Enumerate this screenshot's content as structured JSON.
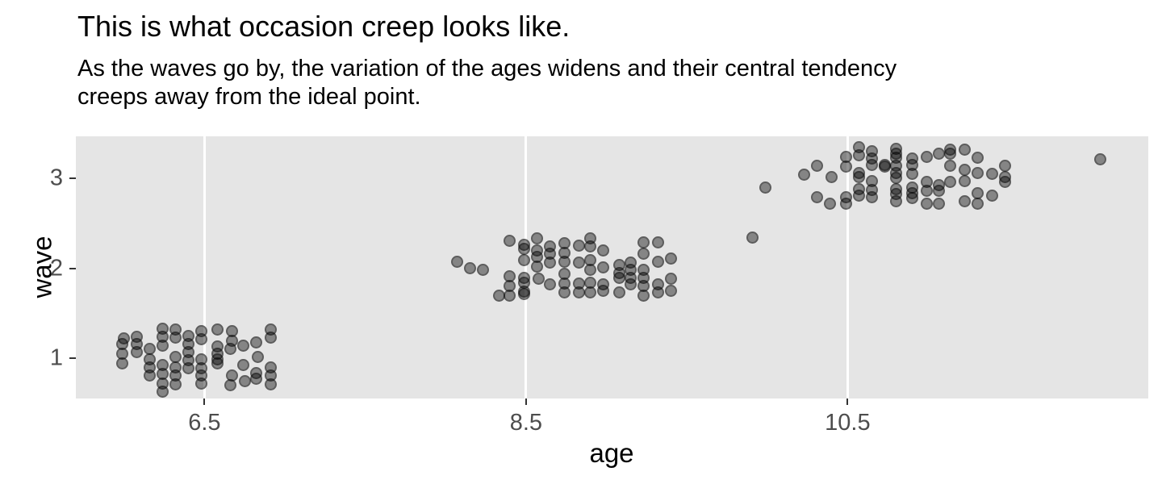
{
  "chart_data": {
    "type": "scatter",
    "title": "This is what occasion creep looks like.",
    "subtitle": "As the waves go by, the variation of the ages widens and their central tendency\ncreeps away from the ideal point.",
    "xlabel": "age",
    "ylabel": "wave",
    "x_ticks": [
      6.5,
      8.5,
      10.5
    ],
    "y_ticks": [
      1,
      2,
      3
    ],
    "xlim": [
      5.7,
      12.37
    ],
    "ylim": [
      0.55,
      3.47
    ],
    "grid": "vertical-major-only",
    "legend": "none",
    "style": {
      "panel_bg": "#e5e5e5",
      "gridline_color": "#ffffff",
      "tick_mark_color": "#333333",
      "axis_text_color": "#4d4d4d",
      "point_color": "#000000",
      "point_fill_alpha": 0.42,
      "point_stroke_alpha": 0.3
    },
    "points": [
      [
        5.99,
        1.16
      ],
      [
        5.99,
        1.05
      ],
      [
        5.99,
        0.94
      ],
      [
        6.0,
        1.22
      ],
      [
        6.08,
        1.24
      ],
      [
        6.08,
        1.16
      ],
      [
        6.08,
        1.07
      ],
      [
        6.16,
        1.1
      ],
      [
        6.16,
        0.99
      ],
      [
        6.16,
        0.9
      ],
      [
        6.16,
        0.81
      ],
      [
        6.24,
        1.33
      ],
      [
        6.24,
        1.24
      ],
      [
        6.24,
        1.14
      ],
      [
        6.24,
        0.92
      ],
      [
        6.24,
        0.82
      ],
      [
        6.24,
        0.72
      ],
      [
        6.24,
        0.63
      ],
      [
        6.32,
        1.32
      ],
      [
        6.32,
        1.23
      ],
      [
        6.32,
        1.01
      ],
      [
        6.32,
        0.9
      ],
      [
        6.32,
        0.81
      ],
      [
        6.32,
        0.71
      ],
      [
        6.4,
        1.25
      ],
      [
        6.4,
        1.16
      ],
      [
        6.4,
        1.07
      ],
      [
        6.4,
        0.98
      ],
      [
        6.4,
        0.89
      ],
      [
        6.48,
        1.3
      ],
      [
        6.48,
        1.21
      ],
      [
        6.48,
        0.99
      ],
      [
        6.48,
        0.89
      ],
      [
        6.48,
        0.81
      ],
      [
        6.48,
        0.72
      ],
      [
        6.58,
        1.32
      ],
      [
        6.58,
        1.13
      ],
      [
        6.58,
        1.05
      ],
      [
        6.58,
        0.99
      ],
      [
        6.58,
        0.94
      ],
      [
        6.67,
        1.3
      ],
      [
        6.67,
        1.19
      ],
      [
        6.66,
        1.1
      ],
      [
        6.67,
        0.81
      ],
      [
        6.66,
        0.7
      ],
      [
        6.74,
        1.14
      ],
      [
        6.74,
        0.92
      ],
      [
        6.75,
        0.74
      ],
      [
        6.82,
        1.17
      ],
      [
        6.83,
        1.01
      ],
      [
        6.82,
        0.83
      ],
      [
        6.82,
        0.77
      ],
      [
        6.91,
        1.32
      ],
      [
        6.91,
        1.23
      ],
      [
        6.91,
        0.9
      ],
      [
        6.91,
        0.81
      ],
      [
        6.91,
        0.71
      ],
      [
        8.07,
        2.07
      ],
      [
        8.15,
        2.0
      ],
      [
        8.23,
        1.98
      ],
      [
        8.33,
        1.7
      ],
      [
        8.4,
        2.31
      ],
      [
        8.4,
        1.91
      ],
      [
        8.4,
        1.8
      ],
      [
        8.4,
        1.7
      ],
      [
        8.49,
        2.26
      ],
      [
        8.49,
        2.22
      ],
      [
        8.49,
        2.09
      ],
      [
        8.49,
        1.89
      ],
      [
        8.49,
        1.84
      ],
      [
        8.49,
        1.74
      ],
      [
        8.49,
        1.71
      ],
      [
        8.57,
        2.33
      ],
      [
        8.57,
        2.2
      ],
      [
        8.57,
        2.13
      ],
      [
        8.57,
        2.02
      ],
      [
        8.58,
        1.88
      ],
      [
        8.65,
        2.24
      ],
      [
        8.65,
        2.16
      ],
      [
        8.65,
        2.06
      ],
      [
        8.65,
        1.82
      ],
      [
        8.74,
        2.28
      ],
      [
        8.74,
        2.17
      ],
      [
        8.74,
        2.07
      ],
      [
        8.74,
        1.94
      ],
      [
        8.74,
        1.83
      ],
      [
        8.74,
        1.73
      ],
      [
        8.83,
        2.25
      ],
      [
        8.83,
        2.06
      ],
      [
        8.83,
        1.83
      ],
      [
        8.83,
        1.73
      ],
      [
        8.9,
        2.33
      ],
      [
        8.9,
        2.24
      ],
      [
        8.9,
        2.09
      ],
      [
        8.9,
        1.98
      ],
      [
        8.9,
        1.84
      ],
      [
        8.9,
        1.73
      ],
      [
        8.98,
        2.2
      ],
      [
        8.98,
        2.01
      ],
      [
        8.98,
        1.82
      ],
      [
        8.98,
        1.75
      ],
      [
        9.08,
        2.04
      ],
      [
        9.08,
        1.95
      ],
      [
        9.08,
        1.89
      ],
      [
        9.08,
        1.73
      ],
      [
        9.15,
        2.06
      ],
      [
        9.15,
        1.98
      ],
      [
        9.15,
        1.89
      ],
      [
        9.15,
        1.82
      ],
      [
        9.23,
        2.29
      ],
      [
        9.23,
        2.16
      ],
      [
        9.23,
        1.98
      ],
      [
        9.23,
        1.89
      ],
      [
        9.23,
        1.8
      ],
      [
        9.23,
        1.7
      ],
      [
        9.32,
        2.29
      ],
      [
        9.32,
        2.07
      ],
      [
        9.32,
        1.82
      ],
      [
        9.32,
        1.73
      ],
      [
        9.4,
        2.11
      ],
      [
        9.4,
        1.88
      ],
      [
        9.4,
        1.75
      ],
      [
        9.91,
        2.34
      ],
      [
        9.99,
        2.9
      ],
      [
        10.23,
        3.04
      ],
      [
        10.31,
        3.14
      ],
      [
        10.31,
        2.79
      ],
      [
        10.4,
        3.02
      ],
      [
        10.39,
        2.72
      ],
      [
        10.49,
        3.24
      ],
      [
        10.49,
        3.13
      ],
      [
        10.49,
        2.79
      ],
      [
        10.49,
        2.72
      ],
      [
        10.57,
        3.35
      ],
      [
        10.57,
        3.26
      ],
      [
        10.57,
        3.06
      ],
      [
        10.57,
        3.02
      ],
      [
        10.57,
        2.88
      ],
      [
        10.57,
        2.81
      ],
      [
        10.65,
        3.3
      ],
      [
        10.65,
        3.22
      ],
      [
        10.65,
        3.15
      ],
      [
        10.65,
        2.97
      ],
      [
        10.65,
        2.87
      ],
      [
        10.65,
        2.79
      ],
      [
        10.73,
        3.15
      ],
      [
        10.73,
        3.13
      ],
      [
        10.8,
        3.33
      ],
      [
        10.8,
        3.28
      ],
      [
        10.8,
        3.23
      ],
      [
        10.8,
        3.14
      ],
      [
        10.8,
        3.06
      ],
      [
        10.8,
        3.01
      ],
      [
        10.8,
        2.88
      ],
      [
        10.8,
        2.83
      ],
      [
        10.8,
        2.75
      ],
      [
        10.9,
        3.22
      ],
      [
        10.9,
        3.15
      ],
      [
        10.9,
        3.05
      ],
      [
        10.9,
        2.9
      ],
      [
        10.9,
        2.84
      ],
      [
        10.9,
        2.78
      ],
      [
        10.99,
        3.24
      ],
      [
        10.99,
        2.96
      ],
      [
        10.99,
        2.86
      ],
      [
        10.99,
        2.72
      ],
      [
        11.07,
        3.28
      ],
      [
        11.07,
        2.93
      ],
      [
        11.07,
        2.86
      ],
      [
        11.07,
        2.72
      ],
      [
        11.14,
        3.32
      ],
      [
        11.14,
        3.28
      ],
      [
        11.14,
        3.14
      ],
      [
        11.14,
        2.96
      ],
      [
        11.23,
        3.32
      ],
      [
        11.23,
        3.1
      ],
      [
        11.23,
        2.97
      ],
      [
        11.23,
        2.75
      ],
      [
        11.31,
        3.23
      ],
      [
        11.31,
        3.06
      ],
      [
        11.31,
        2.84
      ],
      [
        11.31,
        2.72
      ],
      [
        11.4,
        3.05
      ],
      [
        11.4,
        2.81
      ],
      [
        11.48,
        3.14
      ],
      [
        11.48,
        3.02
      ],
      [
        11.48,
        2.96
      ],
      [
        12.07,
        3.21
      ]
    ]
  }
}
